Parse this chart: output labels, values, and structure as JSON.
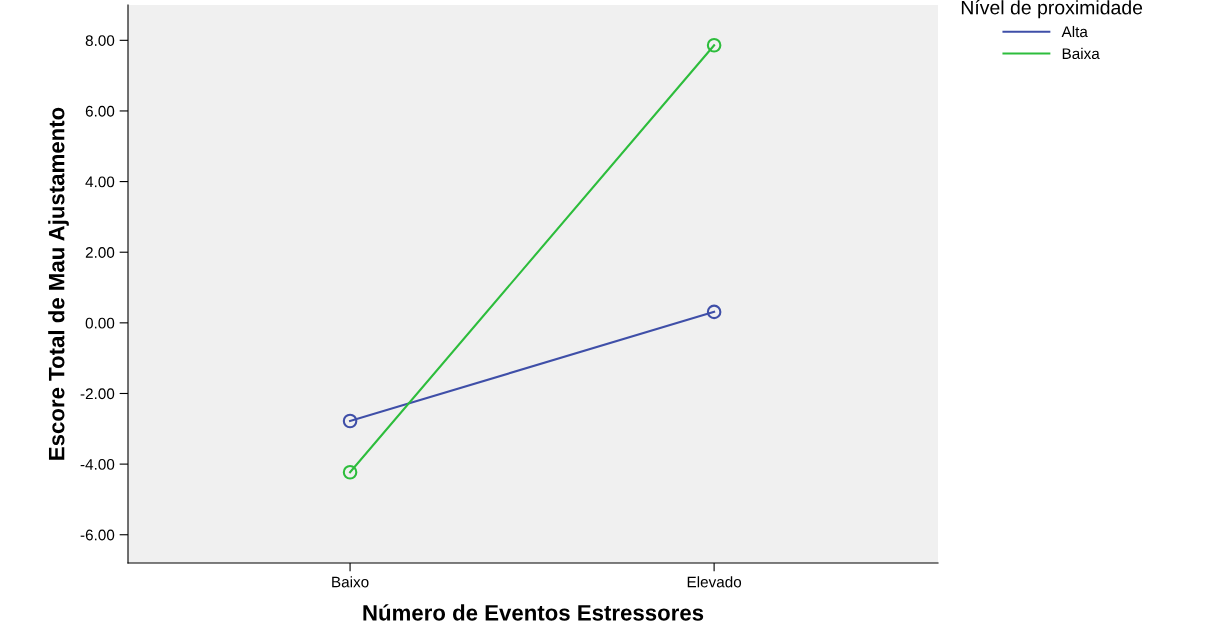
{
  "chart_data": {
    "type": "line",
    "xlabel": "Número de Eventos Estressores",
    "ylabel": "Escore Total de Mau Ajustamento",
    "legend_title": "Nível de proximidade",
    "categories": [
      "Baixo",
      "Elevado"
    ],
    "series": [
      {
        "name": "Alta",
        "color": "#3f4fa8",
        "values": [
          -2.78,
          0.31
        ]
      },
      {
        "name": "Baixa",
        "color": "#2dbd3c",
        "values": [
          -4.23,
          7.86
        ]
      }
    ],
    "ylim": [
      -6.8,
      9.0
    ],
    "yticks": [
      {
        "value": -6,
        "label": "-6.00"
      },
      {
        "value": -4,
        "label": "-4.00"
      },
      {
        "value": -2,
        "label": "-2.00"
      },
      {
        "value": 0,
        "label": "0.00"
      },
      {
        "value": 2,
        "label": "2.00"
      },
      {
        "value": 4,
        "label": "4.00"
      },
      {
        "value": 6,
        "label": "6.00"
      },
      {
        "value": 8,
        "label": "8.00"
      }
    ],
    "marker": "circle",
    "line_style": "solid",
    "grid": false,
    "legend": "top right"
  }
}
